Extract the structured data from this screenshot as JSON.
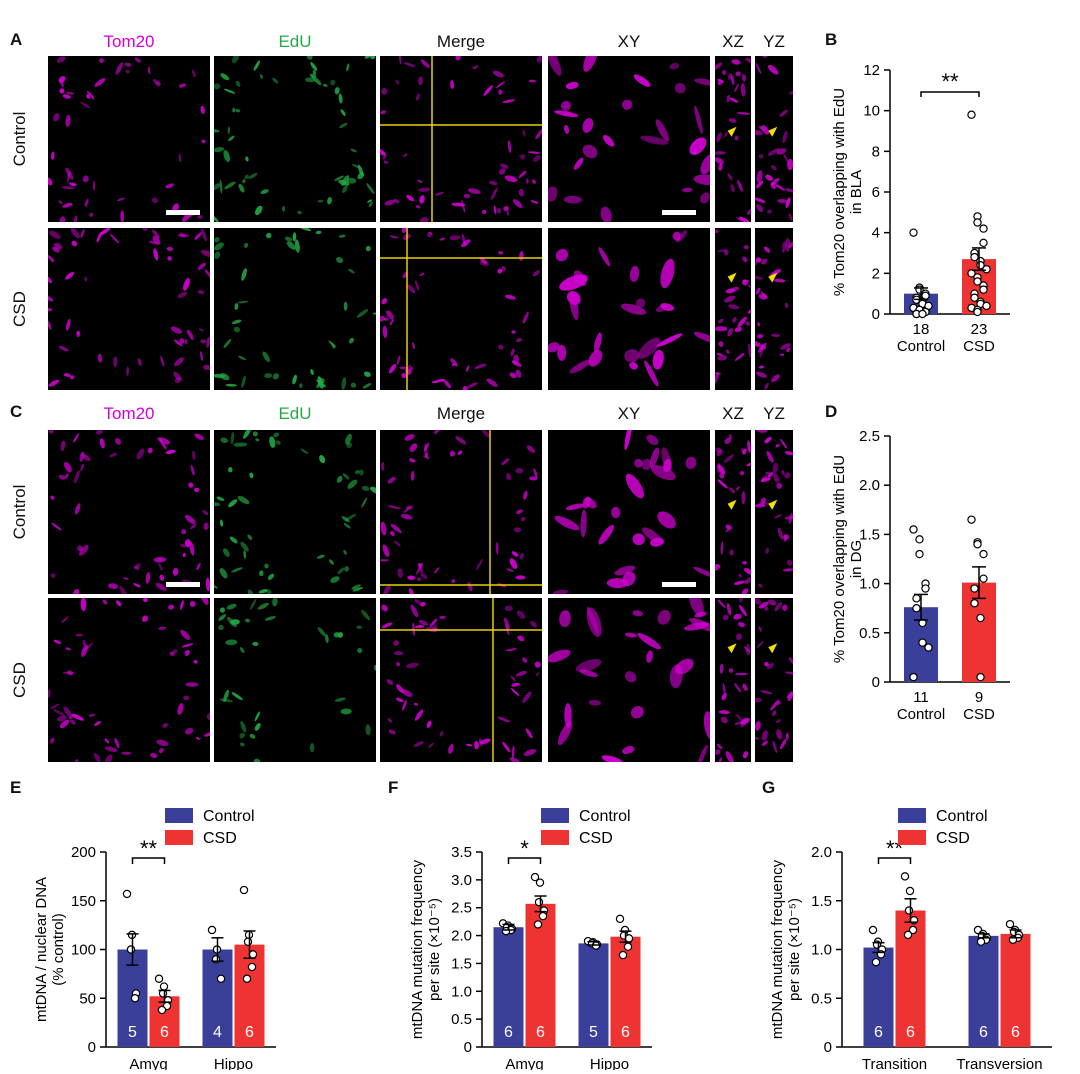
{
  "colors": {
    "control": "#3a3f99",
    "csd": "#ee3333",
    "magenta": "#d400d4",
    "green": "#22aa44",
    "crosshair": "#e8d000",
    "arrowhead": "#f2e000"
  },
  "panel_letters": [
    "A",
    "B",
    "C",
    "D",
    "E",
    "F",
    "G"
  ],
  "image_panels": {
    "columns": [
      "Tom20",
      "EdU",
      "Merge",
      "XY",
      "XZ",
      "YZ"
    ],
    "rows": [
      "Control",
      "CSD"
    ]
  },
  "chart_data": [
    {
      "panel": "B",
      "type": "bar",
      "ylabel": "% Tom20 overlapping with EdU in BLA",
      "ylim": [
        0,
        12
      ],
      "yticks": [
        0,
        2,
        4,
        6,
        8,
        10,
        12
      ],
      "categories": [
        "Control",
        "CSD"
      ],
      "n_labels": [
        "18",
        "23"
      ],
      "values": [
        1.0,
        2.7
      ],
      "errors": [
        0.28,
        0.55
      ],
      "significance": "**",
      "points": [
        [
          4.0,
          1.3,
          1.2,
          1.0,
          0.9,
          0.8,
          0.7,
          0.6,
          0.5,
          0.4,
          0.3,
          0.2,
          0.2,
          0.1,
          0.1,
          0.0,
          0.0,
          0.0
        ],
        [
          9.8,
          4.8,
          4.5,
          4.2,
          3.5,
          3.0,
          2.8,
          2.6,
          2.4,
          2.2,
          2.0,
          1.8,
          1.6,
          1.4,
          1.2,
          1.0,
          0.8,
          0.6,
          0.5,
          0.4,
          0.3,
          0.2,
          0.1
        ]
      ]
    },
    {
      "panel": "D",
      "type": "bar",
      "ylabel": "% Tom20 overlapping with EdU in DG",
      "ylim": [
        0,
        2.5
      ],
      "yticks": [
        "0",
        "0.5",
        "1.0",
        "1.5",
        "2.0",
        "2.5"
      ],
      "categories": [
        "Control",
        "CSD"
      ],
      "n_labels": [
        "11",
        "9"
      ],
      "values": [
        0.76,
        1.01
      ],
      "errors": [
        0.13,
        0.16
      ],
      "points": [
        [
          1.55,
          1.45,
          1.3,
          1.0,
          0.95,
          0.85,
          0.75,
          0.6,
          0.4,
          0.35,
          0.05
        ],
        [
          1.65,
          1.42,
          1.4,
          1.3,
          1.05,
          0.95,
          0.8,
          0.65,
          0.05
        ]
      ]
    },
    {
      "panel": "E",
      "type": "bar",
      "ylabel": "mtDNA / nuclear DNA (% control)",
      "ylim": [
        0,
        200
      ],
      "yticks": [
        0,
        50,
        100,
        150,
        200
      ],
      "categories": [
        "Amyg",
        "Hippo"
      ],
      "series": [
        {
          "name": "Control",
          "values": [
            100,
            100
          ],
          "errors": [
            16,
            12
          ],
          "n": [
            "5",
            "4"
          ],
          "points": [
            [
              157,
              115,
              100,
              55,
              50
            ],
            [
              120,
              100,
              90,
              70
            ]
          ]
        },
        {
          "name": "CSD",
          "values": [
            52,
            105
          ],
          "errors": [
            6,
            14
          ],
          "n": [
            "6",
            "6"
          ],
          "points": [
            [
              70,
              62,
              55,
              48,
              42,
              38
            ],
            [
              161,
              115,
              108,
              95,
              82,
              70
            ]
          ]
        }
      ],
      "significance": [
        {
          "category": "Amyg",
          "label": "**"
        }
      ]
    },
    {
      "panel": "F",
      "type": "bar",
      "ylabel": "mtDNA mutation frequency per site (×10⁻⁵)",
      "ylim": [
        0,
        3.5
      ],
      "yticks": [
        "0",
        "0.5",
        "1.0",
        "1.5",
        "2.0",
        "2.5",
        "3.0",
        "3.5"
      ],
      "categories": [
        "Amyg",
        "Hippo"
      ],
      "series": [
        {
          "name": "Control",
          "values": [
            2.15,
            1.86
          ],
          "errors": [
            0.05,
            0.03
          ],
          "n": [
            "6",
            "5"
          ],
          "points": [
            [
              2.22,
              2.18,
              2.15,
              2.12,
              2.1,
              2.08
            ],
            [
              1.9,
              1.88,
              1.86,
              1.84,
              1.82
            ]
          ]
        },
        {
          "name": "CSD",
          "values": [
            2.57,
            1.98
          ],
          "errors": [
            0.14,
            0.1
          ],
          "n": [
            "6",
            "6"
          ],
          "points": [
            [
              3.05,
              2.95,
              2.6,
              2.45,
              2.35,
              2.2
            ],
            [
              2.3,
              2.1,
              2.0,
              1.95,
              1.8,
              1.65
            ]
          ]
        }
      ],
      "significance": [
        {
          "category": "Amyg",
          "label": "*"
        }
      ]
    },
    {
      "panel": "G",
      "type": "bar",
      "ylabel": "mtDNA mutation frequency per site (×10⁻⁵)",
      "ylim": [
        0,
        2.0
      ],
      "yticks": [
        "0",
        "0.5",
        "1.0",
        "1.5",
        "2.0"
      ],
      "categories": [
        "Transition",
        "Transversion"
      ],
      "series": [
        {
          "name": "Control",
          "values": [
            1.02,
            1.14
          ],
          "errors": [
            0.05,
            0.02
          ],
          "n": [
            "6",
            "6"
          ],
          "points": [
            [
              1.2,
              1.08,
              1.05,
              1.0,
              0.95,
              0.87
            ],
            [
              1.2,
              1.16,
              1.14,
              1.12,
              1.1,
              1.08
            ]
          ]
        },
        {
          "name": "CSD",
          "values": [
            1.4,
            1.16
          ],
          "errors": [
            0.12,
            0.04
          ],
          "n": [
            "6",
            "6"
          ],
          "points": [
            [
              1.75,
              1.6,
              1.4,
              1.3,
              1.2,
              1.15
            ],
            [
              1.26,
              1.2,
              1.18,
              1.15,
              1.12,
              1.1
            ]
          ]
        }
      ],
      "significance": [
        {
          "category": "Transition",
          "label": "**"
        }
      ]
    }
  ]
}
